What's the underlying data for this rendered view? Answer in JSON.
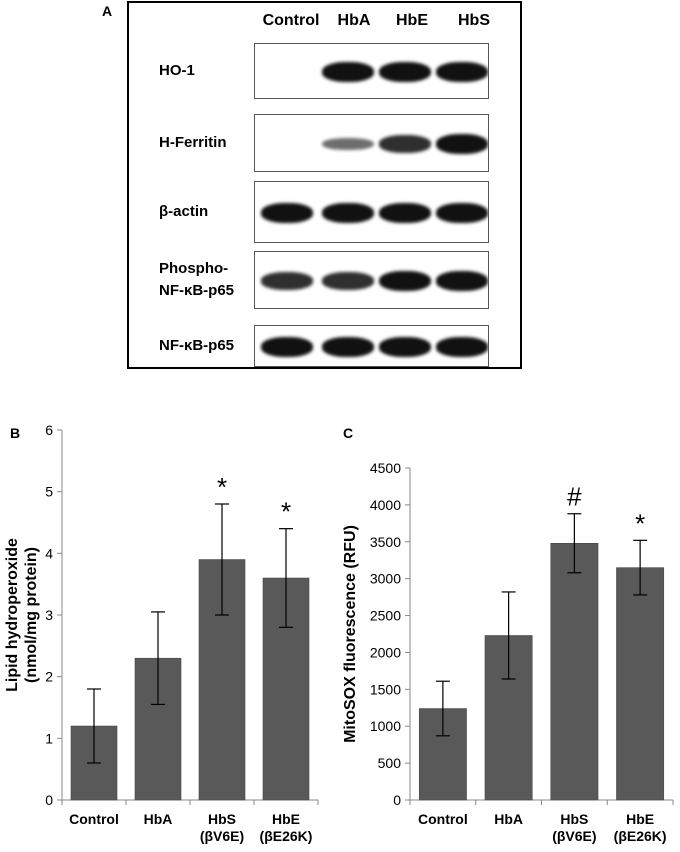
{
  "panels": {
    "a": "A",
    "b": "B",
    "c": "C"
  },
  "blot": {
    "lanes": [
      "Control",
      "HbA",
      "HbE",
      "HbS"
    ],
    "rows": [
      {
        "label": "HO-1",
        "intensity": [
          0,
          1,
          1,
          1
        ]
      },
      {
        "label": "H-Ferritin",
        "intensity": [
          0,
          0.4,
          0.8,
          1
        ]
      },
      {
        "label": "β-actin",
        "intensity": [
          1,
          1,
          1,
          1
        ]
      },
      {
        "label": "Phospho-\nNF-κB-p65",
        "intensity": [
          0.8,
          0.8,
          1,
          1
        ]
      },
      {
        "label": "NF-κB-p65",
        "intensity": [
          1,
          1,
          1,
          1
        ]
      }
    ]
  },
  "chart_data": [
    {
      "type": "bar",
      "title": "",
      "ylabel": "Lipid hydroperoxide\n(nmol/mg protein)",
      "xlabel": "",
      "categories": [
        "Control",
        "HbA",
        "HbS\n(βV6E)",
        "HbE\n(βE26K)"
      ],
      "values": [
        1.2,
        2.3,
        3.9,
        3.6
      ],
      "errors": [
        0.6,
        0.75,
        0.9,
        0.8
      ],
      "annotations": [
        "",
        "",
        "*",
        "*"
      ],
      "ylim": [
        0,
        6
      ],
      "yticks": [
        0,
        1,
        2,
        3,
        4,
        5,
        6
      ],
      "bar_color": "#595959"
    },
    {
      "type": "bar",
      "title": "",
      "ylabel": "MitoSOX fluorescence (RFU)",
      "xlabel": "",
      "categories": [
        "Control",
        "HbA",
        "HbS\n(βV6E)",
        "HbE\n(βE26K)"
      ],
      "values": [
        1240,
        2230,
        3480,
        3150
      ],
      "errors": [
        370,
        590,
        400,
        370
      ],
      "annotations": [
        "",
        "",
        "#",
        "*"
      ],
      "ylim": [
        0,
        4500
      ],
      "yticks": [
        0,
        500,
        1000,
        1500,
        2000,
        2500,
        3000,
        3500,
        4000,
        4500
      ],
      "bar_color": "#595959"
    }
  ]
}
